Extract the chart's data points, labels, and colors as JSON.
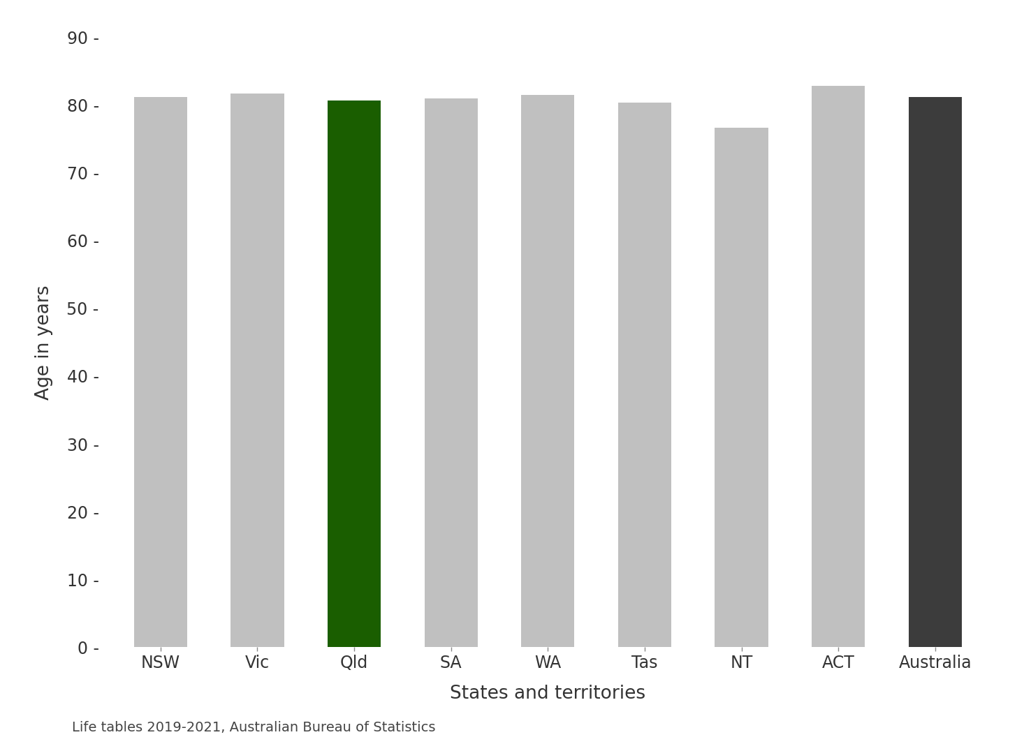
{
  "categories": [
    "NSW",
    "Vic",
    "Qld",
    "SA",
    "WA",
    "Tas",
    "NT",
    "ACT",
    "Australia"
  ],
  "values": [
    81.2,
    81.7,
    80.7,
    81.0,
    81.5,
    80.4,
    76.6,
    82.8,
    81.2
  ],
  "bar_colors": [
    "#c0c0c0",
    "#c0c0c0",
    "#1a5e00",
    "#c0c0c0",
    "#c0c0c0",
    "#c0c0c0",
    "#c0c0c0",
    "#c0c0c0",
    "#3c3c3c"
  ],
  "xlabel": "States and territories",
  "ylabel": "Age in years",
  "ylim": [
    0,
    90
  ],
  "yticks": [
    0,
    10,
    20,
    30,
    40,
    50,
    60,
    70,
    80,
    90
  ],
  "caption": "Life tables 2019-2021, Australian Bureau of Statistics",
  "background_color": "#ffffff",
  "tick_label_fontsize": 17,
  "axis_label_fontsize": 19,
  "caption_fontsize": 14,
  "bar_width": 0.55
}
